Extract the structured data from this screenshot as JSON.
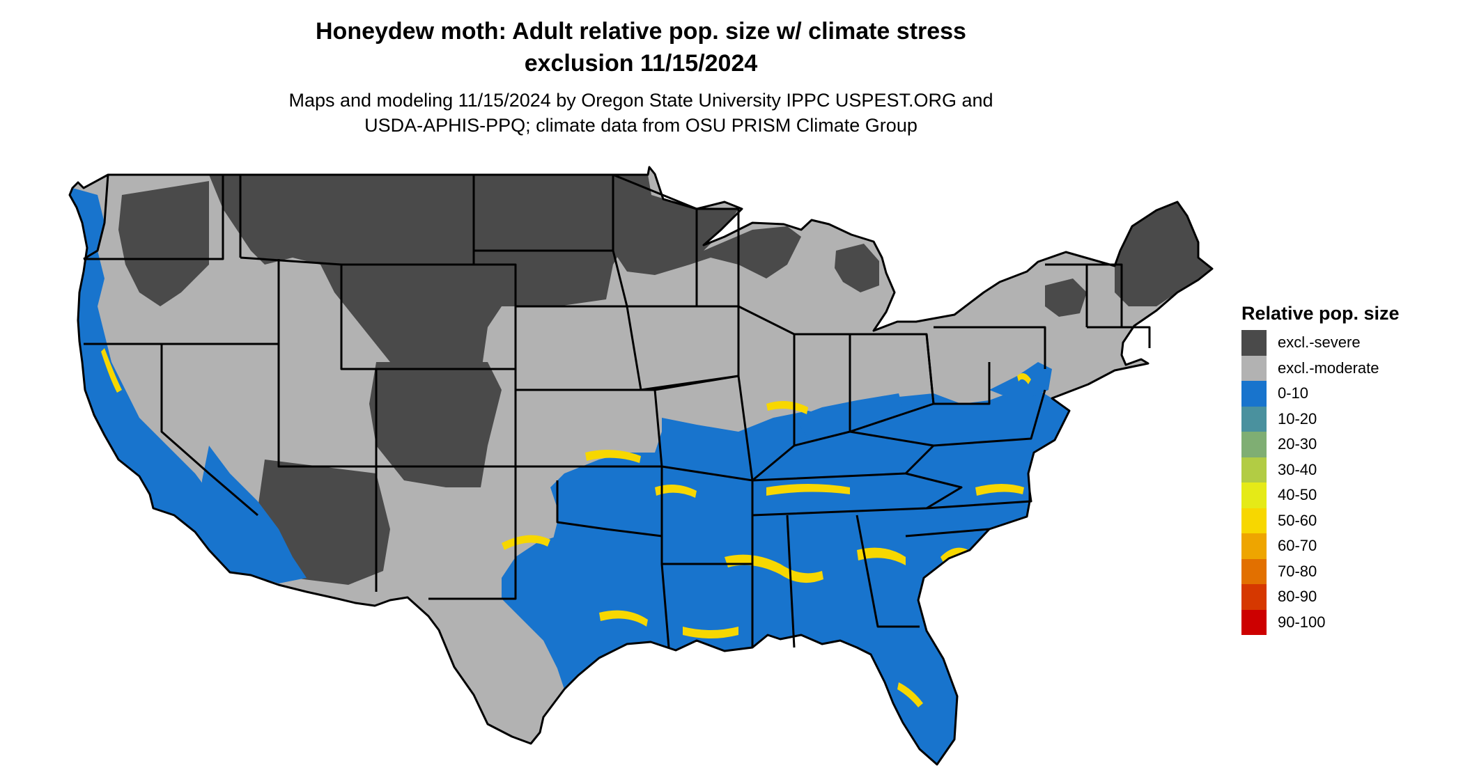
{
  "title_lines": [
    "Honeydew moth: Adult relative pop. size w/ climate stress",
    "exclusion 11/15/2024"
  ],
  "subtitle_lines": [
    "Maps and modeling 11/15/2024 by Oregon State University IPPC USPEST.ORG and",
    "USDA-APHIS-PPQ; climate data from OSU PRISM Climate Group"
  ],
  "legend": {
    "title": "Relative pop. size",
    "items": [
      {
        "label": "excl.-severe",
        "color": "#4a4a4a"
      },
      {
        "label": "excl.-moderate",
        "color": "#b2b2b2"
      },
      {
        "label": "0-10",
        "color": "#1874cd"
      },
      {
        "label": "10-20",
        "color": "#4a919e"
      },
      {
        "label": "20-30",
        "color": "#7fae73"
      },
      {
        "label": "30-40",
        "color": "#b2cc44"
      },
      {
        "label": "40-50",
        "color": "#e5ea17"
      },
      {
        "label": "50-60",
        "color": "#f7d700"
      },
      {
        "label": "60-70",
        "color": "#eea500"
      },
      {
        "label": "70-80",
        "color": "#e27000"
      },
      {
        "label": "80-90",
        "color": "#d63800"
      },
      {
        "label": "90-100",
        "color": "#cd0000"
      }
    ]
  }
}
